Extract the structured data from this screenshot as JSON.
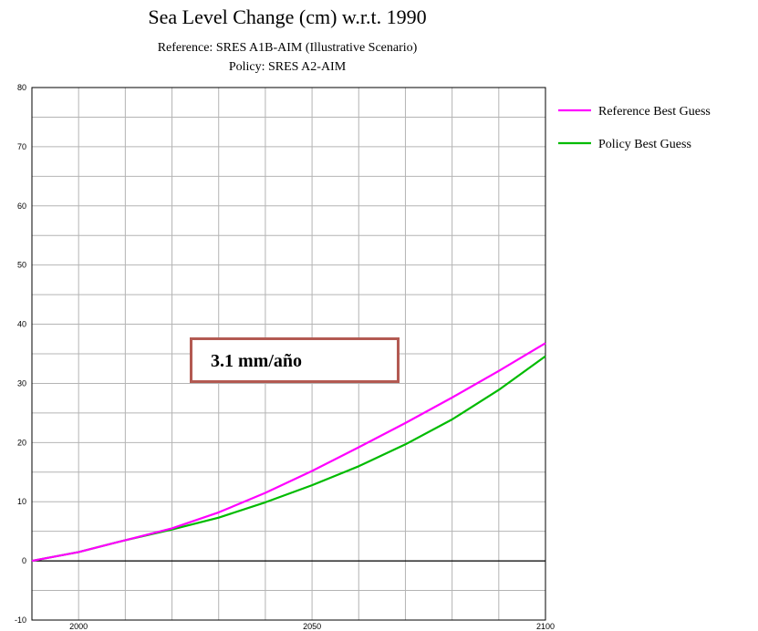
{
  "chart_data": {
    "type": "line",
    "title": "Sea Level Change (cm) w.r.t. 1990",
    "subtitles": [
      "Reference: SRES A1B-AIM (Illustrative Scenario)",
      "Policy: SRES A2-AIM"
    ],
    "xlabel": "",
    "ylabel": "",
    "xlim": [
      1990,
      2100
    ],
    "ylim": [
      -10,
      80
    ],
    "x_ticks": [
      2000,
      2050,
      2100
    ],
    "y_ticks": [
      -10,
      0,
      10,
      20,
      30,
      40,
      50,
      60,
      70,
      80
    ],
    "grid": true,
    "legend_position": "top-right",
    "series": [
      {
        "name": "Reference Best Guess",
        "color": "#ff00ff",
        "x": [
          1990,
          2000,
          2010,
          2020,
          2030,
          2040,
          2050,
          2060,
          2070,
          2080,
          2090,
          2100
        ],
        "y": [
          0,
          1.5,
          3.5,
          5.5,
          8.2,
          11.5,
          15.2,
          19.2,
          23.3,
          27.6,
          32.1,
          36.8
        ]
      },
      {
        "name": "Policy Best Guess",
        "color": "#00bb00",
        "x": [
          1990,
          2000,
          2010,
          2020,
          2030,
          2040,
          2050,
          2060,
          2070,
          2080,
          2090,
          2100
        ],
        "y": [
          0,
          1.5,
          3.5,
          5.3,
          7.3,
          9.9,
          12.8,
          16.0,
          19.7,
          23.9,
          28.9,
          34.6
        ]
      }
    ],
    "annotation": "3.1 mm/año"
  }
}
